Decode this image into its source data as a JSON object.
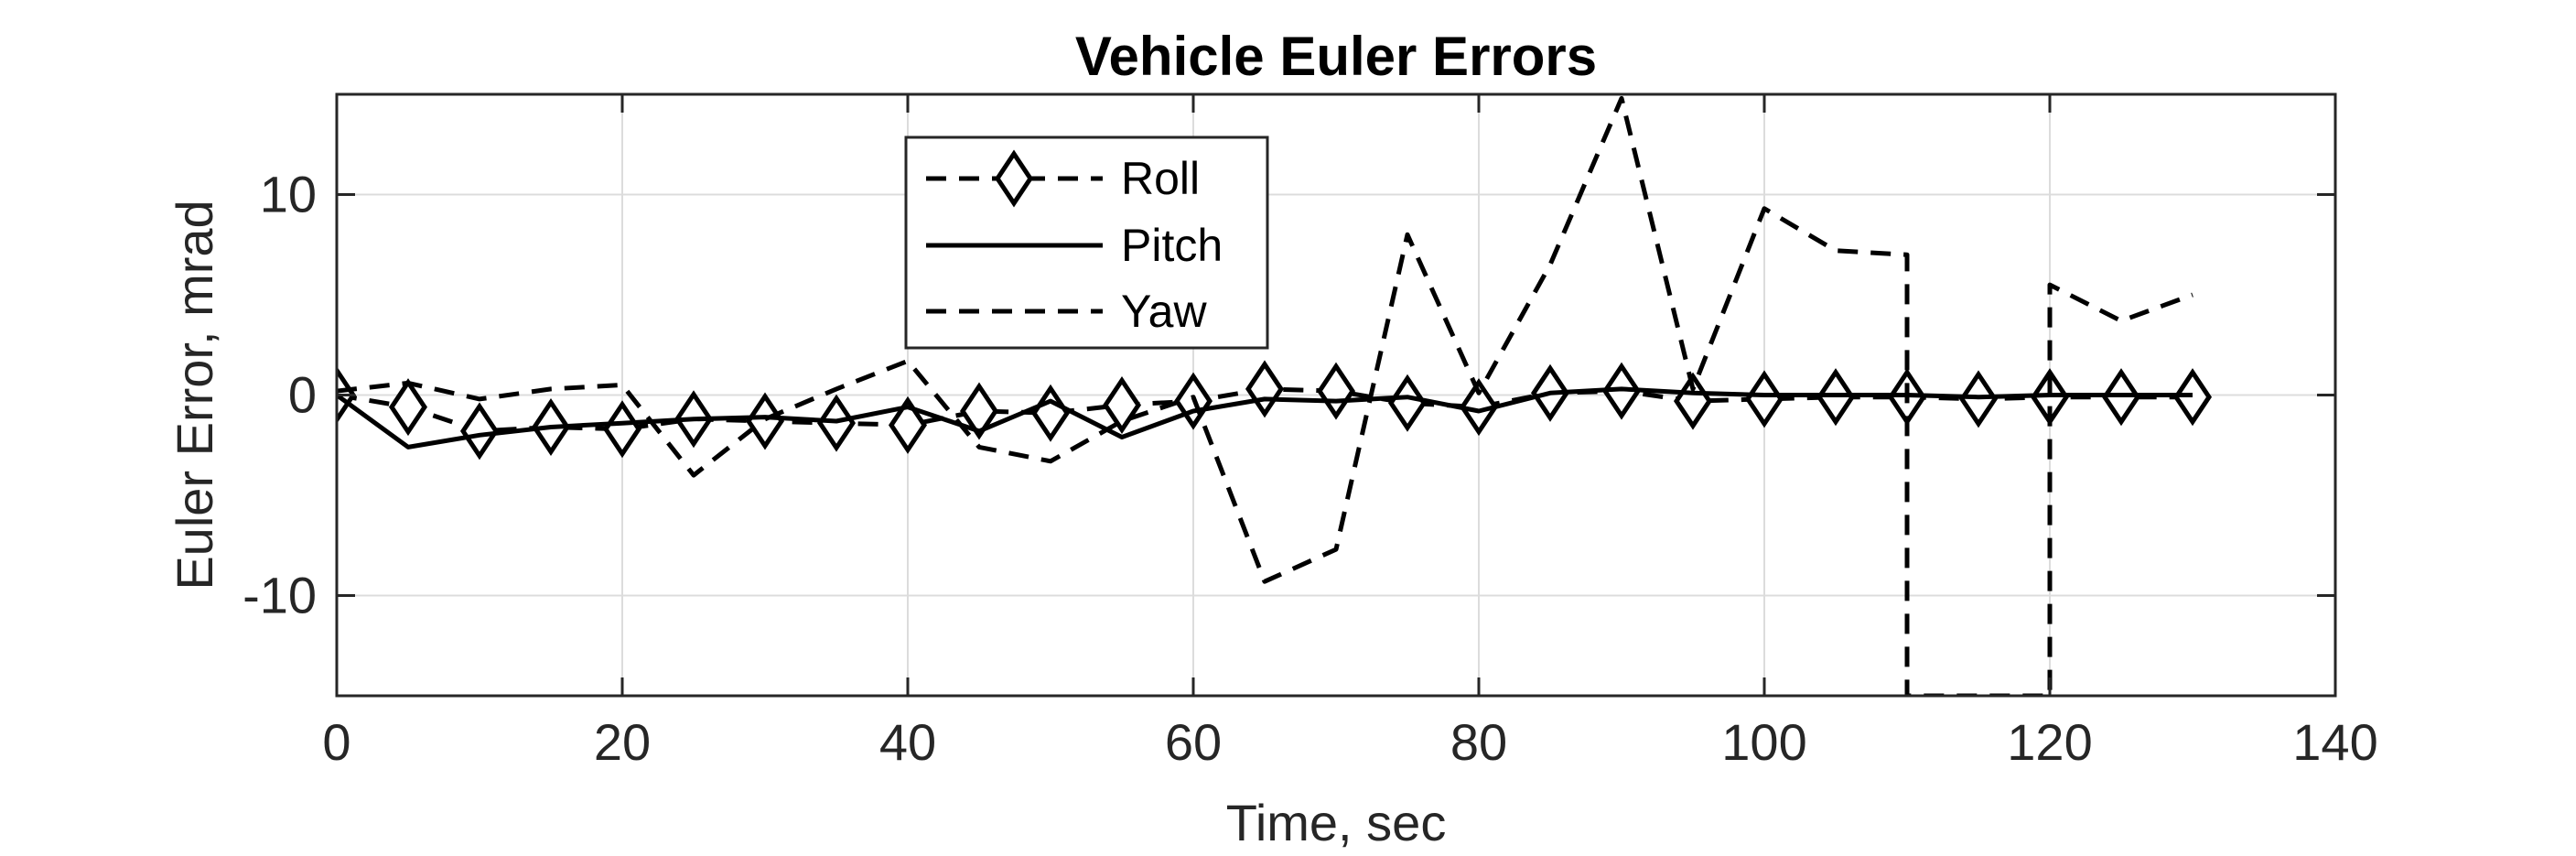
{
  "chart_data": {
    "type": "line",
    "title": "Vehicle Euler Errors",
    "xlabel": "Time, sec",
    "ylabel": "Euler Error, mrad",
    "xlim": [
      0,
      140
    ],
    "ylim": [
      -15,
      15
    ],
    "xticks": [
      0,
      20,
      40,
      60,
      80,
      100,
      120,
      140
    ],
    "yticks": [
      -10,
      0,
      10
    ],
    "xtick_labels": [
      "0",
      "20",
      "40",
      "60",
      "80",
      "100",
      "120",
      "140"
    ],
    "ytick_labels": [
      "-10",
      "0",
      "10"
    ],
    "grid": true,
    "legend": "top-left inside plot",
    "series": [
      {
        "name": "Roll",
        "style": "dashed-diamond",
        "x": [
          0,
          5,
          10,
          15,
          20,
          25,
          30,
          35,
          40,
          45,
          50,
          55,
          60,
          65,
          70,
          75,
          80,
          85,
          90,
          95,
          100,
          105,
          110,
          115,
          120,
          125,
          130
        ],
        "y": [
          0.0,
          -0.6,
          -1.8,
          -1.6,
          -1.7,
          -1.2,
          -1.3,
          -1.4,
          -1.5,
          -0.8,
          -0.9,
          -0.5,
          -0.3,
          0.3,
          0.2,
          -0.4,
          -0.6,
          0.1,
          0.2,
          -0.3,
          -0.2,
          -0.1,
          -0.1,
          -0.2,
          -0.1,
          -0.1,
          -0.1
        ]
      },
      {
        "name": "Pitch",
        "style": "solid",
        "x": [
          0,
          5,
          10,
          15,
          20,
          25,
          30,
          35,
          40,
          45,
          50,
          55,
          60,
          65,
          70,
          75,
          80,
          85,
          90,
          95,
          100,
          105,
          110,
          115,
          120,
          125,
          130
        ],
        "y": [
          0.0,
          -2.6,
          -2.0,
          -1.6,
          -1.4,
          -1.2,
          -1.1,
          -1.3,
          -0.6,
          -1.8,
          -0.3,
          -2.1,
          -0.8,
          -0.2,
          -0.3,
          -0.1,
          -0.8,
          0.1,
          0.3,
          0.1,
          0.0,
          0.0,
          0.0,
          -0.1,
          0.0,
          0.0,
          0.0
        ]
      },
      {
        "name": "Yaw",
        "style": "dashed",
        "x": [
          0,
          5,
          10,
          15,
          20,
          25,
          30,
          35,
          40,
          45,
          50,
          55,
          60,
          65,
          70,
          75,
          80,
          85,
          90,
          95,
          100,
          105,
          110,
          110,
          120,
          120,
          125,
          130
        ],
        "y": [
          0.2,
          0.6,
          -0.2,
          0.3,
          0.5,
          -4.0,
          -1.2,
          0.3,
          1.7,
          -2.6,
          -3.3,
          -1.3,
          -0.1,
          -9.3,
          -7.7,
          8.0,
          0.1,
          6.5,
          14.8,
          0.3,
          9.3,
          7.2,
          7.0,
          -15.0,
          -15.0,
          5.5,
          3.7,
          5.0
        ]
      }
    ]
  }
}
